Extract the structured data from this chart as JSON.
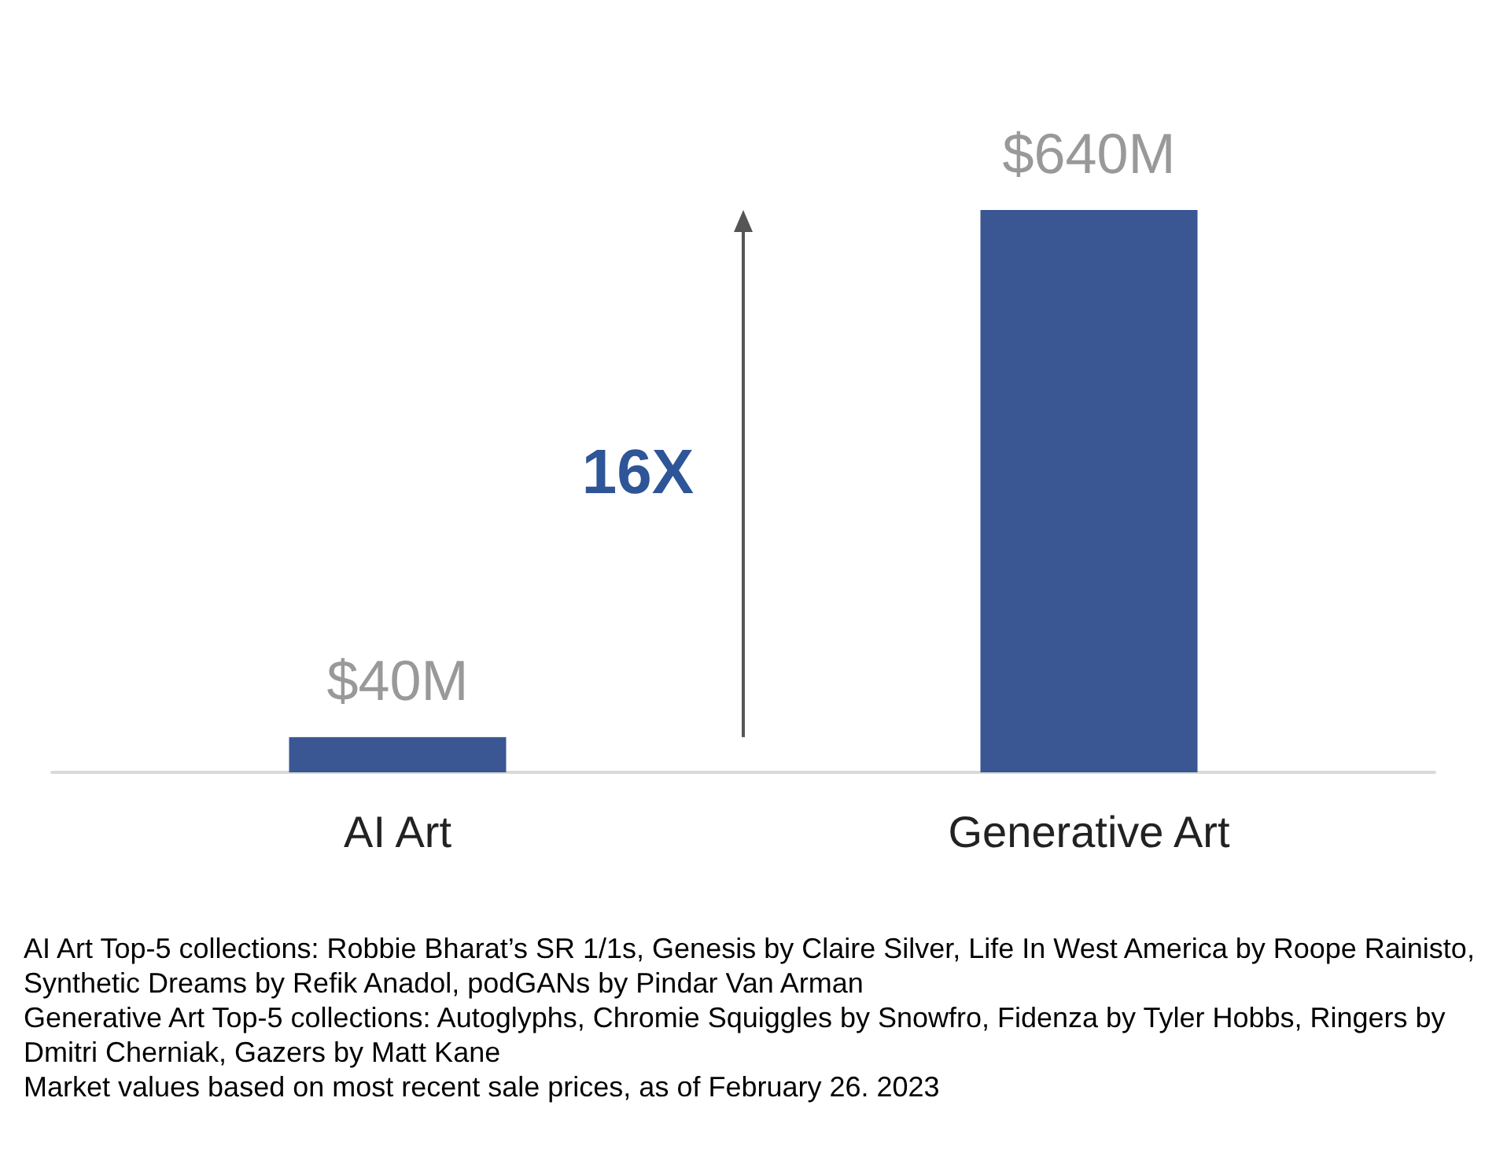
{
  "chart_data": {
    "type": "bar",
    "categories": [
      "AI Art",
      "Generative Art"
    ],
    "values": [
      40,
      640
    ],
    "color": "#3a5793",
    "value_labels": [
      "$40M",
      "$640M"
    ],
    "annotations": [
      "16X",
      "AI Art Top-5 collections: Robbie Bharat’s SR 1/1s, Genesis by Claire Silver, Life In West America by Roope Rainisto, Synthetic Dreams by Refik Anadol, podGANs by Pindar Van Arman",
      "Generative Art Top-5 collections: Autoglyphs, Chromie Squiggles by Snowfro, Fidenza by Tyler Hobbs, Ringers by Dmitri Cherniak, Gazers by Matt Kane",
      "Market values based on most recent sale prices, as of February 26. 2023"
    ]
  }
}
